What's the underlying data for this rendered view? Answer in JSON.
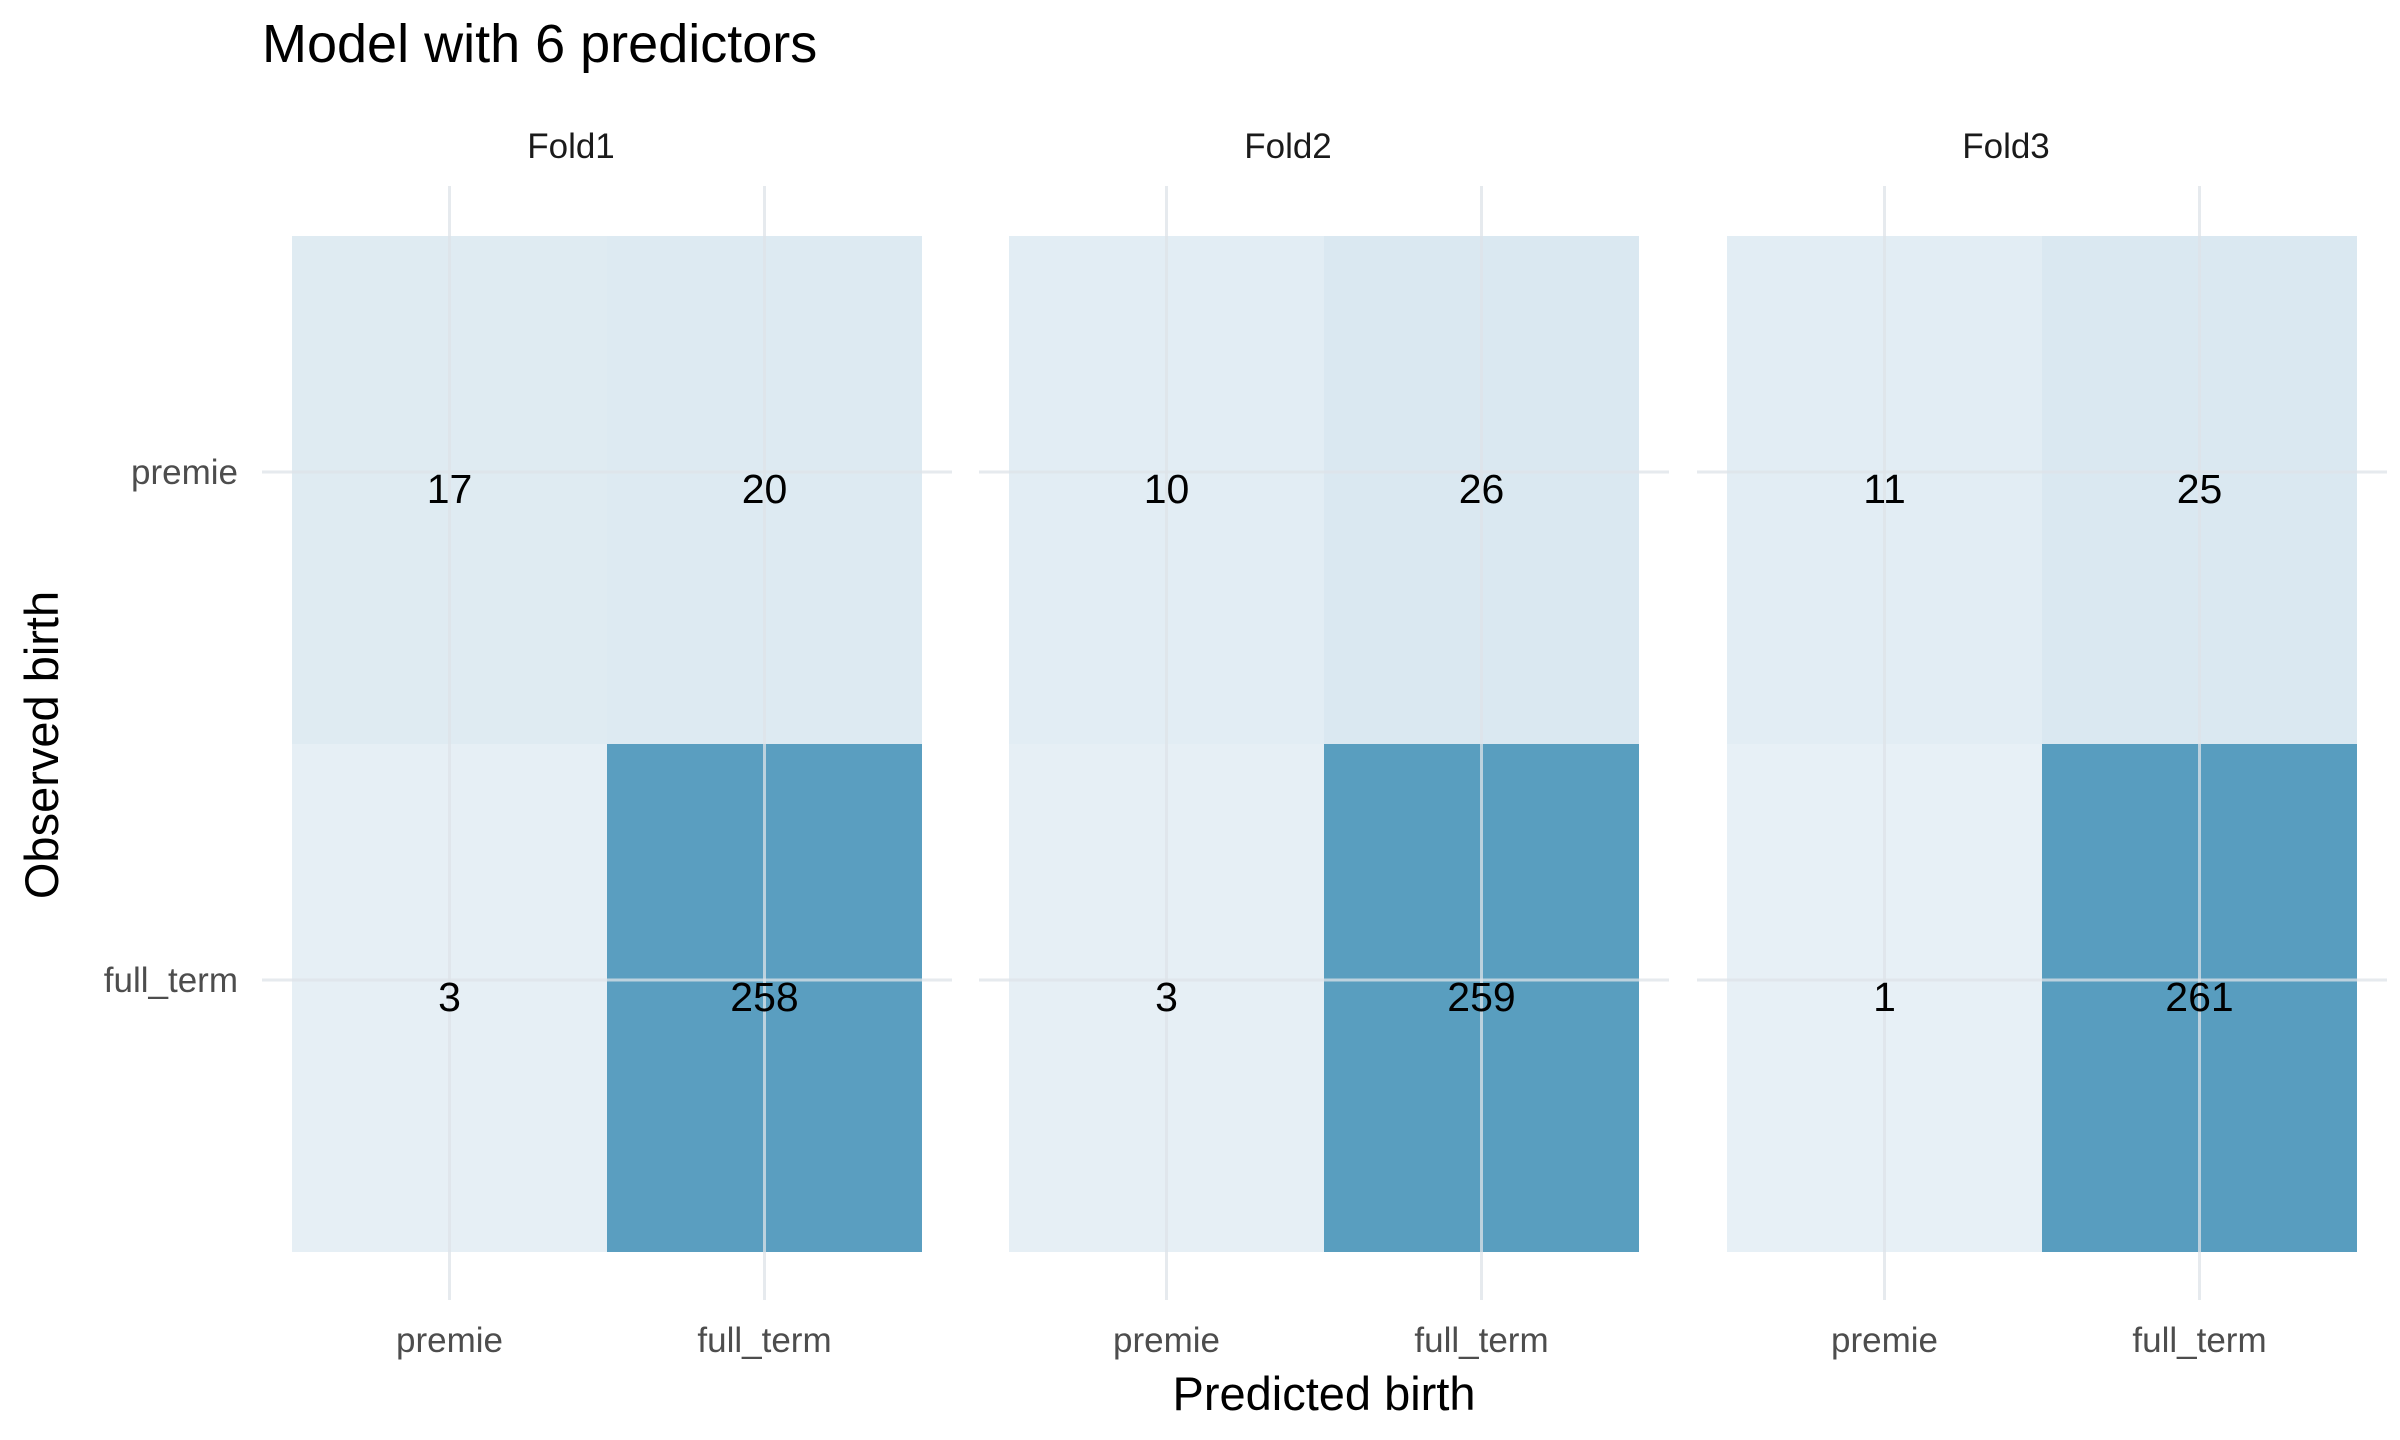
{
  "chart_data": {
    "type": "heatmap",
    "title": "Model with 6 predictors",
    "xlabel": "Predicted birth",
    "ylabel": "Observed birth",
    "x_categories": [
      "premie",
      "full_term"
    ],
    "y_categories": [
      "premie",
      "full_term"
    ],
    "grid": true,
    "legend": "none",
    "colors": {
      "low": "#e8f0f6",
      "high": "#589dbf",
      "gridline": "#dde3e8"
    },
    "panels": [
      {
        "name": "Fold1",
        "cells": [
          {
            "observed": "premie",
            "predicted": "premie",
            "count": 17
          },
          {
            "observed": "premie",
            "predicted": "full_term",
            "count": 20
          },
          {
            "observed": "full_term",
            "predicted": "premie",
            "count": 3
          },
          {
            "observed": "full_term",
            "predicted": "full_term",
            "count": 258
          }
        ]
      },
      {
        "name": "Fold2",
        "cells": [
          {
            "observed": "premie",
            "predicted": "premie",
            "count": 10
          },
          {
            "observed": "premie",
            "predicted": "full_term",
            "count": 26
          },
          {
            "observed": "full_term",
            "predicted": "premie",
            "count": 3
          },
          {
            "observed": "full_term",
            "predicted": "full_term",
            "count": 259
          }
        ]
      },
      {
        "name": "Fold3",
        "cells": [
          {
            "observed": "premie",
            "predicted": "premie",
            "count": 11
          },
          {
            "observed": "premie",
            "predicted": "full_term",
            "count": 25
          },
          {
            "observed": "full_term",
            "predicted": "premie",
            "count": 1
          },
          {
            "observed": "full_term",
            "predicted": "full_term",
            "count": 261
          }
        ]
      }
    ]
  }
}
